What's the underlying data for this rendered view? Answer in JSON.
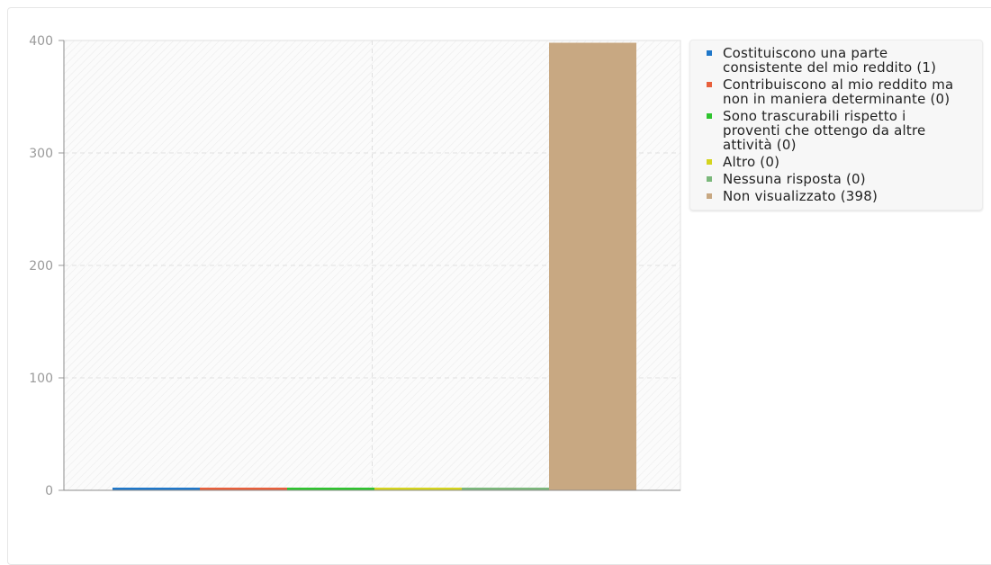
{
  "chart_data": {
    "type": "bar",
    "categories": [
      "Costituiscono una parte consistente del mio reddito (1)",
      "Contribuiscono al mio reddito ma non in maniera determinante (0)",
      "Sono trascurabili rispetto i proventi che ottengo da altre attività (0)",
      "Altro (0)",
      "Nessuna risposta (0)",
      "Non visualizzato (398)"
    ],
    "values": [
      1,
      0,
      0,
      0,
      0,
      398
    ],
    "colors": [
      "#1f77c9",
      "#e8603c",
      "#2fc42f",
      "#d4d41f",
      "#7bb87b",
      "#c8a882"
    ],
    "yticks": [
      "0",
      "100",
      "200",
      "300",
      "400"
    ],
    "ylim": [
      0,
      400
    ],
    "grid": true,
    "legend_position": "right"
  },
  "legend": {
    "items": [
      "Costituiscono una parte consistente del mio reddito (1)",
      "Contribuiscono al mio reddito ma non in maniera determinante (0)",
      "Sono trascurabili rispetto i proventi che ottengo da altre attività (0)",
      "Altro (0)",
      "Nessuna risposta (0)",
      "Non visualizzato (398)"
    ]
  }
}
